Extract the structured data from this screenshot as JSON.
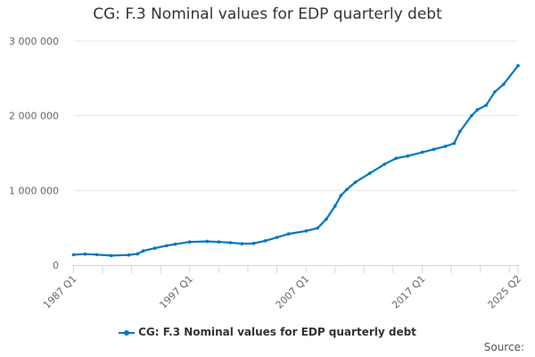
{
  "chart_data": {
    "type": "line",
    "title": "CG: F.3 Nominal values for EDP quarterly debt",
    "xlabel": "",
    "ylabel": "",
    "ylim": [
      0,
      3000000
    ],
    "yticks": [
      0,
      1000000,
      2000000,
      3000000
    ],
    "ytick_labels": [
      "0",
      "1 000 000",
      "2 000 000",
      "3 000 000"
    ],
    "xrange": [
      "1987 Q1",
      "2025 Q2"
    ],
    "xtick_labels": [
      "1987 Q1",
      "1997 Q1",
      "2007 Q1",
      "2017 Q1",
      "2025 Q2"
    ],
    "grid": true,
    "legend_position": "bottom",
    "color": "#0077c0",
    "series": [
      {
        "name": "CG: F.3 Nominal values for EDP quarterly debt",
        "points": [
          [
            "1987 Q1",
            139000
          ],
          [
            "1988 Q1",
            147000
          ],
          [
            "1989 Q1",
            140000
          ],
          [
            "1990 Q2",
            127000
          ],
          [
            "1991 Q4",
            135000
          ],
          [
            "1992 Q3",
            150000
          ],
          [
            "1993 Q1",
            190000
          ],
          [
            "1994 Q1",
            226000
          ],
          [
            "1995 Q1",
            260000
          ],
          [
            "1995 Q4",
            280000
          ],
          [
            "1997 Q1",
            310000
          ],
          [
            "1998 Q3",
            317000
          ],
          [
            "1999 Q3",
            310000
          ],
          [
            "2000 Q3",
            300000
          ],
          [
            "2001 Q3",
            286000
          ],
          [
            "2002 Q3",
            290000
          ],
          [
            "2003 Q3",
            325000
          ],
          [
            "2004 Q3",
            370000
          ],
          [
            "2005 Q3",
            417000
          ],
          [
            "2007 Q1",
            456000
          ],
          [
            "2008 Q1",
            496000
          ],
          [
            "2008 Q4",
            615000
          ],
          [
            "2009 Q3",
            790000
          ],
          [
            "2010 Q1",
            930000
          ],
          [
            "2010 Q3",
            1010000
          ],
          [
            "2011 Q2",
            1110000
          ],
          [
            "2012 Q3",
            1230000
          ],
          [
            "2013 Q4",
            1350000
          ],
          [
            "2014 Q4",
            1430000
          ],
          [
            "2015 Q4",
            1460000
          ],
          [
            "2017 Q1",
            1510000
          ],
          [
            "2018 Q1",
            1550000
          ],
          [
            "2019 Q1",
            1590000
          ],
          [
            "2019 Q4",
            1630000
          ],
          [
            "2020 Q2",
            1790000
          ],
          [
            "2021 Q2",
            2000000
          ],
          [
            "2021 Q4",
            2080000
          ],
          [
            "2022 Q3",
            2140000
          ],
          [
            "2023 Q2",
            2320000
          ],
          [
            "2024 Q1",
            2420000
          ],
          [
            "2025 Q2",
            2670000
          ]
        ]
      }
    ]
  },
  "legend": {
    "label": "CG: F.3 Nominal values for EDP quarterly debt"
  },
  "source": "Source:"
}
